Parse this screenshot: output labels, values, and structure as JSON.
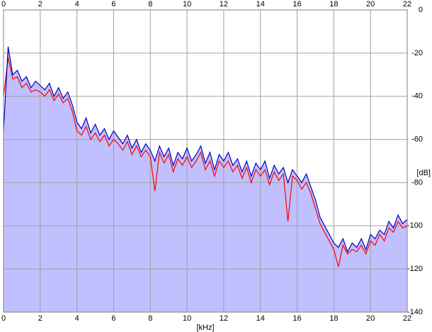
{
  "chart_data": {
    "type": "line",
    "x_label": "[kHz]",
    "y_label": "[dB]",
    "x": [
      0,
      0.25,
      0.5,
      0.75,
      1,
      1.25,
      1.5,
      1.75,
      2,
      2.25,
      2.5,
      2.75,
      3,
      3.25,
      3.5,
      3.75,
      4,
      4.25,
      4.5,
      4.75,
      5,
      5.25,
      5.5,
      5.75,
      6,
      6.25,
      6.5,
      6.75,
      7,
      7.25,
      7.5,
      7.75,
      8,
      8.25,
      8.5,
      8.75,
      9,
      9.25,
      9.5,
      9.75,
      10,
      10.25,
      10.5,
      10.75,
      11,
      11.25,
      11.5,
      11.75,
      12,
      12.25,
      12.5,
      12.75,
      13,
      13.25,
      13.5,
      13.75,
      14,
      14.25,
      14.5,
      14.75,
      15,
      15.25,
      15.5,
      15.75,
      16,
      16.25,
      16.5,
      16.75,
      17,
      17.25,
      17.5,
      17.75,
      18,
      18.25,
      18.5,
      18.75,
      19,
      19.25,
      19.5,
      19.75,
      20,
      20.25,
      20.5,
      20.75,
      21,
      21.25,
      21.5,
      21.75,
      22
    ],
    "series": [
      {
        "color": "#ff0000",
        "values": [
          -40,
          -22,
          -32,
          -31,
          -36,
          -34,
          -38,
          -37,
          -38,
          -40,
          -37,
          -42,
          -39,
          -43,
          -41,
          -47,
          -56,
          -58,
          -54,
          -60,
          -57,
          -61,
          -58,
          -63,
          -60,
          -62,
          -65,
          -61,
          -67,
          -63,
          -68,
          -65,
          -68,
          -84,
          -66,
          -71,
          -67,
          -75,
          -69,
          -72,
          -68,
          -73,
          -70,
          -66,
          -74,
          -70,
          -77,
          -70,
          -73,
          -70,
          -75,
          -72,
          -78,
          -73,
          -80,
          -74,
          -77,
          -74,
          -81,
          -75,
          -79,
          -76,
          -98,
          -77,
          -79,
          -83,
          -80,
          -85,
          -92,
          -99,
          -103,
          -107,
          -111,
          -119,
          -109,
          -113,
          -111,
          -112,
          -109,
          -113,
          -107,
          -109,
          -104,
          -107,
          -101,
          -103,
          -98,
          -101,
          -100
        ]
      },
      {
        "color": "#0000c0",
        "fill": "#c0c0ff",
        "values": [
          -56,
          -17,
          -30,
          -28,
          -33,
          -31,
          -36,
          -33,
          -35,
          -37,
          -34,
          -40,
          -36,
          -41,
          -38,
          -44,
          -52,
          -55,
          -50,
          -57,
          -53,
          -58,
          -55,
          -60,
          -56,
          -59,
          -62,
          -58,
          -64,
          -60,
          -66,
          -62,
          -65,
          -70,
          -63,
          -68,
          -64,
          -72,
          -66,
          -69,
          -64,
          -70,
          -67,
          -63,
          -71,
          -66,
          -74,
          -67,
          -70,
          -66,
          -72,
          -69,
          -75,
          -70,
          -77,
          -71,
          -74,
          -70,
          -78,
          -72,
          -76,
          -73,
          -80,
          -74,
          -77,
          -80,
          -76,
          -82,
          -88,
          -96,
          -100,
          -104,
          -108,
          -110,
          -106,
          -112,
          -108,
          -110,
          -106,
          -111,
          -104,
          -106,
          -102,
          -104,
          -98,
          -101,
          -95,
          -99,
          -97
        ]
      }
    ],
    "xlim": [
      0,
      22
    ],
    "xticks": [
      0,
      2,
      4,
      6,
      8,
      10,
      12,
      14,
      16,
      18,
      20,
      22
    ],
    "ylim": [
      -140,
      0
    ],
    "yticks": [
      0,
      -20,
      -40,
      -60,
      -80,
      -100,
      -120,
      -140
    ],
    "grid": true
  }
}
